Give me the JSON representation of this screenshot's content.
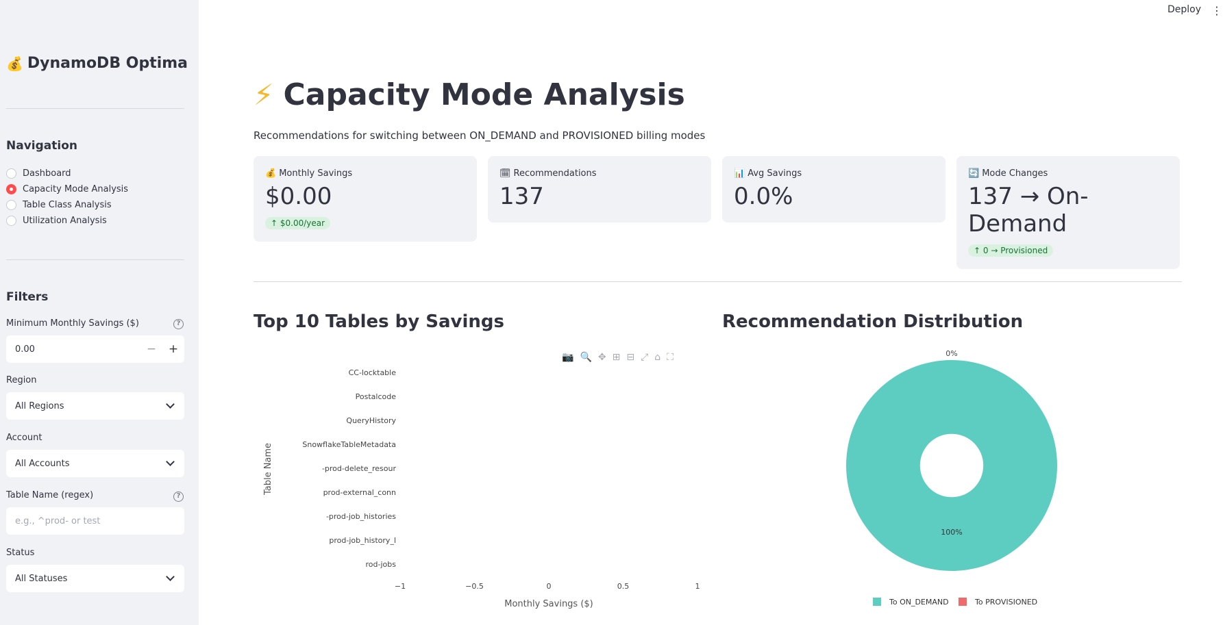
{
  "sidebar": {
    "brand": "DynamoDB Optima",
    "brand_icon": "money-bag",
    "nav_title": "Navigation",
    "nav_items": [
      {
        "label": "Dashboard",
        "selected": false
      },
      {
        "label": "Capacity Mode Analysis",
        "selected": true
      },
      {
        "label": "Table Class Analysis",
        "selected": false
      },
      {
        "label": "Utilization Analysis",
        "selected": false
      }
    ],
    "filters_title": "Filters",
    "min_savings_label": "Minimum Monthly Savings ($)",
    "min_savings_value": "0.00",
    "region_label": "Region",
    "region_value": "All Regions",
    "account_label": "Account",
    "account_value": "All Accounts",
    "table_name_label": "Table Name (regex)",
    "table_name_placeholder": "e.g., ^prod- or test",
    "status_label": "Status",
    "status_value": "All Statuses"
  },
  "header": {
    "deploy_label": "Deploy"
  },
  "main": {
    "title": "Capacity Mode Analysis",
    "title_icon": "lightning-bolt",
    "subtitle": "Recommendations for switching between ON_DEMAND and PROVISIONED billing modes",
    "metrics": [
      {
        "label": "Monthly Savings",
        "icon": "money-bag",
        "value": "$0.00",
        "delta": "$0.00/year"
      },
      {
        "label": "Recommendations",
        "icon": "calendar",
        "value": "137",
        "delta": ""
      },
      {
        "label": "Avg Savings",
        "icon": "bar-chart",
        "value": "0.0%",
        "delta": ""
      },
      {
        "label": "Mode Changes",
        "icon": "refresh",
        "value": "137 → On-Demand",
        "delta": "0 → Provisioned"
      }
    ],
    "bar_chart_title": "Top 10 Tables by Savings",
    "pie_chart_title": "Recommendation Distribution"
  },
  "chart_data": [
    {
      "type": "bar",
      "orientation": "horizontal",
      "title": "Top 10 Tables by Savings",
      "xlabel": "Monthly Savings ($)",
      "ylabel": "Table Name",
      "categories": [
        "CC-locktable",
        "Postalcode",
        "QueryHistory",
        "SnowflakeTableMetadata",
        "-prod-delete_resour",
        "prod-external_conn",
        "-prod-job_histories",
        "prod-job_history_l",
        "rod-jobs"
      ],
      "values": [
        0,
        0,
        0,
        0,
        0,
        0,
        0,
        0,
        0
      ],
      "xticks": [
        "−1",
        "−0.5",
        "0",
        "0.5",
        "1"
      ],
      "xlim": [
        -1,
        1
      ]
    },
    {
      "type": "pie",
      "title": "Recommendation Distribution",
      "hole": 0.3,
      "slices": [
        {
          "label": "To ON_DEMAND",
          "value": 100,
          "text": "100%",
          "color": "#5ccdc0"
        },
        {
          "label": "To PROVISIONED",
          "value": 0,
          "text": "0%",
          "color": "#ef6b6b"
        }
      ]
    }
  ]
}
